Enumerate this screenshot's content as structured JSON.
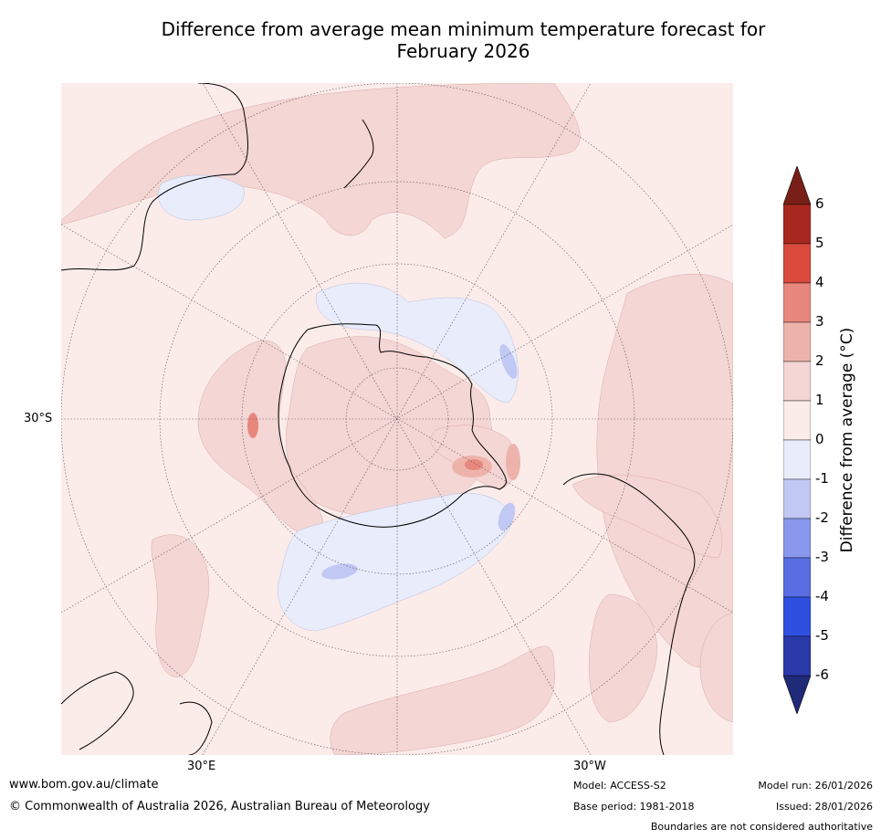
{
  "title": {
    "line1": "Difference from average mean minimum temperature forecast for",
    "line2": "February 2026"
  },
  "map": {
    "projection": "south-polar-stereographic",
    "lat_labels": [
      "30°S"
    ],
    "lon_labels": [
      "30°E",
      "30°W"
    ]
  },
  "colorbar": {
    "label": "Difference from average (°C)",
    "ticks": [
      "6",
      "5",
      "4",
      "3",
      "2",
      "1",
      "0",
      "-1",
      "-2",
      "-3",
      "-4",
      "-5",
      "-6"
    ],
    "bins": [
      {
        "range": [
          5,
          6
        ],
        "color": "#a8281f"
      },
      {
        "range": [
          4,
          5
        ],
        "color": "#d94a3d"
      },
      {
        "range": [
          3,
          4
        ],
        "color": "#e8877d"
      },
      {
        "range": [
          2,
          3
        ],
        "color": "#edb3ab"
      },
      {
        "range": [
          1,
          2
        ],
        "color": "#f4d6d4"
      },
      {
        "range": [
          0,
          1
        ],
        "color": "#fbecea"
      },
      {
        "range": [
          -1,
          0
        ],
        "color": "#e9ecfb"
      },
      {
        "range": [
          -2,
          -1
        ],
        "color": "#c1c8f3"
      },
      {
        "range": [
          -3,
          -2
        ],
        "color": "#8997ec"
      },
      {
        "range": [
          -4,
          -3
        ],
        "color": "#5a6ee3"
      },
      {
        "range": [
          -5,
          -4
        ],
        "color": "#2f4fe0"
      },
      {
        "range": [
          -6,
          -5
        ],
        "color": "#2a3aa8"
      }
    ],
    "over_color": "#7a1f18",
    "under_color": "#1f2a78"
  },
  "footer": {
    "url": "www.bom.gov.au/climate",
    "copyright": "© Commonwealth of Australia 2026, Australian Bureau of Meteorology",
    "model": "Model: ACCESS-S2",
    "base_period": "Base period: 1981-2018",
    "model_run": "Model run: 26/01/2026",
    "issued": "Issued: 28/01/2026",
    "disclaimer": "Boundaries are not considered authoritative"
  }
}
